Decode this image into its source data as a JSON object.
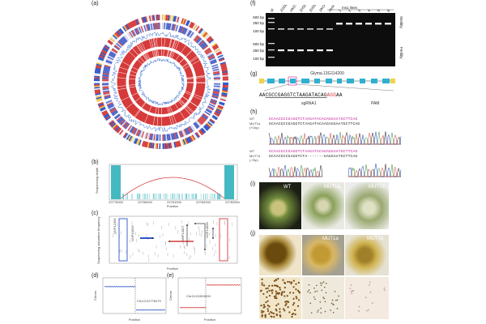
{
  "panels": {
    "a": "(a)",
    "b": "(b)",
    "c": "(c)",
    "d": "(d)",
    "e": "(e)",
    "f": "(f)",
    "g": "(g)",
    "h": "(h)",
    "i": "(i)",
    "j": "(j)"
  },
  "panel_b": {
    "ylabel": "Sequencing depth",
    "xlabel": "Position",
    "xticks": [
      "22776000",
      "22780000",
      "22781000",
      "22782000",
      "22782500"
    ]
  },
  "panel_c": {
    "ylabel": "Sequencing saturation frequency",
    "xlabel": "Position",
    "labels": [
      "NNP12456",
      "NNP10026",
      "NNP14027",
      "NNP14028"
    ]
  },
  "panel_d": {
    "ylabel": "Chrom",
    "xlabel": "Position",
    "annotation": "Chr13:22776270",
    "xticks": [
      "22776000",
      "22776270",
      "22776600"
    ]
  },
  "panel_e": {
    "ylabel": "Chrom",
    "xlabel": "Position",
    "annotation": "Chr13:22819000",
    "xticks": [
      "22818000",
      "22819000",
      "22819700"
    ]
  },
  "panel_f": {
    "lanes": [
      "M",
      "ZGDD",
      "HN27",
      "ZH30",
      "ZH39",
      "JACK",
      "HHX"
    ],
    "ms_title": "ms1 lines",
    "ms_lanes": [
      "1",
      "2",
      "3",
      "4",
      "5",
      "6"
    ],
    "size_markers_top": [
      "500 bp",
      "250 bp",
      "100 bp"
    ],
    "size_markers_bottom": [
      "500 bp",
      "250 bp",
      "100 bp"
    ],
    "right_top": "Sterility",
    "right_bottom": "Fertility"
  },
  "panel_g": {
    "gene": "Glyma.13G114200",
    "seq_prefix": "AA",
    "seq_guide": "CGCCGAGGTCTAAGATACAG",
    "seq_pam": "AGG",
    "seq_suffix": "AA",
    "sgrna": "sgRNA1",
    "pam": "PAM"
  },
  "panel_h": {
    "wt1_label": "WT",
    "wt1_seq": "GCAACGCCGAGGTCTAAGATACAGAGGAATGCTTCAG",
    "mut1a_label": "MUT1a",
    "mut1a_sub": "(+1bp)",
    "mut1a_seq": "GCAACGCCGAGGTCTAAGATACAAGAGGAATGCTTCAG",
    "wt2_label": "WT",
    "wt2_seq": "GCAACGCCGAGGTCTAAGATACAGAGGAATGCTTCAG",
    "mut7d_label": "MUT7d",
    "mut7d_sub": "(-7bp)",
    "mut7d_seq": "GCAACGCCGAGGTCTA-------GAGGAATGCTTCAG"
  },
  "panel_i": {
    "photos": [
      "WT",
      "MUT1a",
      "MUT7d"
    ]
  },
  "panel_j": {
    "photos": [
      "",
      "MUT1a",
      "MUT7d"
    ]
  },
  "colors": {
    "red": "#d63a3a",
    "blue": "#2b56c8",
    "teal": "#44b9c2",
    "sequence_magenta": "#c2189a",
    "gel_bg": "#0d0d0d"
  }
}
